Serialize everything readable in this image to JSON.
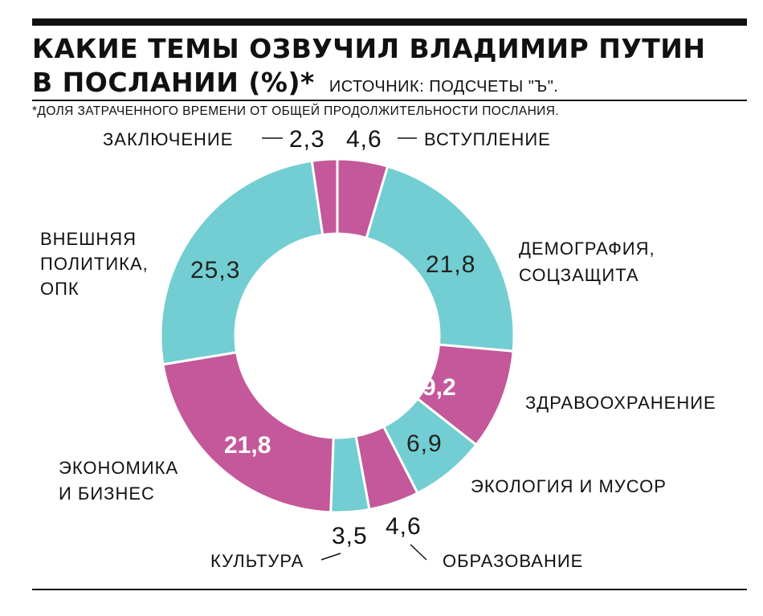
{
  "header": {
    "title_line1": "КАКИЕ ТЕМЫ ОЗВУЧИЛ ВЛАДИМИР ПУТИН",
    "title_line2": "В ПОСЛАНИИ (%)*",
    "source": "ИСТОЧНИК: ПОДСЧЕТЫ \"Ъ\".",
    "footnote": "*ДОЛЯ ЗАТРАЧЕННОГО ВРЕМЕНИ ОТ ОБЩЕЙ ПРОДОЛЖИТЕЛЬНОСТИ ПОСЛАНИЯ."
  },
  "colors": {
    "magenta": "#c4589a",
    "teal": "#72ced2",
    "rule": "#111111"
  },
  "chart_data": {
    "type": "pie",
    "donut": true,
    "unit": "%",
    "slices": [
      {
        "label": "ВСТУПЛЕНИЕ",
        "value": 4.6,
        "value_text": "4,6",
        "color": "#c4589a"
      },
      {
        "label": "ДЕМОГРАФИЯ, СОЦЗАЩИТА",
        "label_lines": [
          "ДЕМОГРАФИЯ,",
          "СОЦЗАЩИТА"
        ],
        "value": 21.8,
        "value_text": "21,8",
        "color": "#72ced2"
      },
      {
        "label": "ЗДРАВООХРАНЕНИЕ",
        "value": 9.2,
        "value_text": "9,2",
        "color": "#c4589a"
      },
      {
        "label": "ЭКОЛОГИЯ И МУСОР",
        "value": 6.9,
        "value_text": "6,9",
        "color": "#72ced2"
      },
      {
        "label": "ОБРАЗОВАНИЕ",
        "value": 4.6,
        "value_text": "4,6",
        "color": "#c4589a"
      },
      {
        "label": "КУЛЬТУРА",
        "value": 3.5,
        "value_text": "3,5",
        "color": "#72ced2"
      },
      {
        "label": "ЭКОНОМИКА И БИЗНЕС",
        "label_lines": [
          "ЭКОНОМИКА",
          "И БИЗНЕС"
        ],
        "value": 21.8,
        "value_text": "21,8",
        "color": "#c4589a"
      },
      {
        "label": "ВНЕШНЯЯ ПОЛИТИКА, ОПК",
        "label_lines": [
          "ВНЕШНЯЯ",
          "ПОЛИТИКА,",
          "ОПК"
        ],
        "value": 25.3,
        "value_text": "25,3",
        "color": "#72ced2"
      },
      {
        "label": "ЗАКЛЮЧЕНИЕ",
        "value": 2.3,
        "value_text": "2,3",
        "color": "#c4589a"
      }
    ]
  }
}
